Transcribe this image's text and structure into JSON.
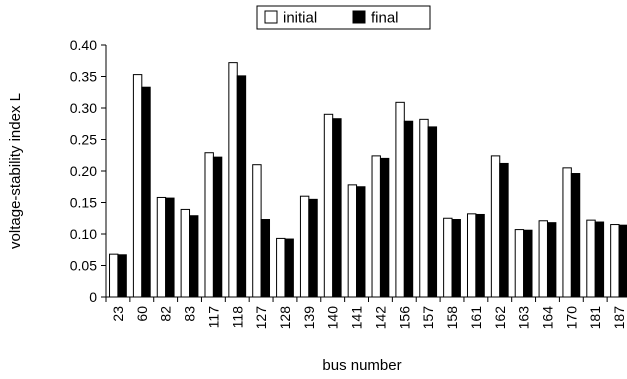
{
  "chart_data": {
    "type": "bar",
    "title": "",
    "xlabel": "bus number",
    "ylabel": "voltage-stability index L",
    "ylim": [
      0,
      0.4
    ],
    "yticks": [
      "0",
      "0.05",
      "0.10",
      "0.15",
      "0.20",
      "0.25",
      "0.30",
      "0.35",
      "0.40"
    ],
    "grid": false,
    "legend_position": "top-center",
    "categories": [
      "23",
      "60",
      "82",
      "83",
      "117",
      "118",
      "127",
      "128",
      "139",
      "140",
      "141",
      "142",
      "156",
      "157",
      "158",
      "161",
      "162",
      "163",
      "164",
      "170",
      "181",
      "187"
    ],
    "series": [
      {
        "name": "initial",
        "color": "#ffffff",
        "values": [
          0.068,
          0.353,
          0.158,
          0.139,
          0.229,
          0.372,
          0.21,
          0.093,
          0.16,
          0.29,
          0.178,
          0.224,
          0.309,
          0.282,
          0.125,
          0.132,
          0.224,
          0.107,
          0.121,
          0.205,
          0.122,
          0.115
        ]
      },
      {
        "name": "final",
        "color": "#000000",
        "values": [
          0.067,
          0.333,
          0.157,
          0.129,
          0.222,
          0.351,
          0.123,
          0.092,
          0.155,
          0.283,
          0.175,
          0.22,
          0.279,
          0.27,
          0.123,
          0.131,
          0.212,
          0.106,
          0.118,
          0.196,
          0.119,
          0.114
        ]
      }
    ]
  }
}
